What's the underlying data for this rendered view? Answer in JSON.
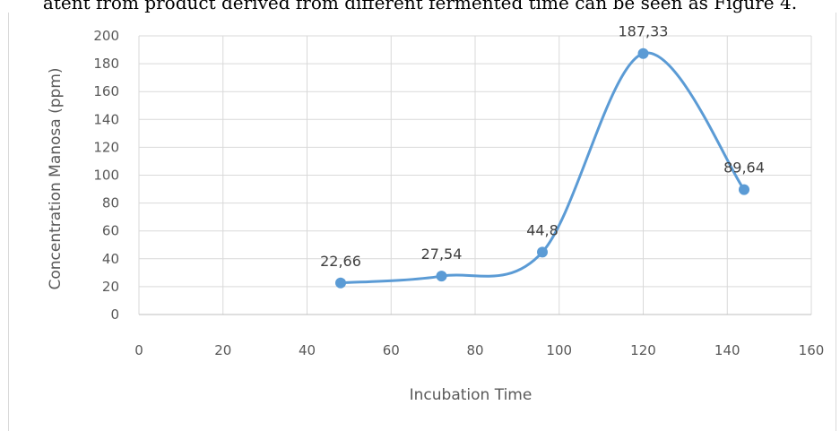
{
  "caption_fragment": "atent from product derived from different fermented time can be seen as Figure 4.",
  "chart_data": {
    "type": "line",
    "smooth": true,
    "title": "",
    "xlabel": "Incubation Time",
    "ylabel": "Concentration Manosa (ppm)",
    "xlim": [
      0,
      160
    ],
    "ylim": [
      0,
      200
    ],
    "xticks": [
      0,
      20,
      40,
      60,
      80,
      100,
      120,
      140,
      160
    ],
    "yticks": [
      0,
      20,
      40,
      60,
      80,
      100,
      120,
      140,
      160,
      180,
      200
    ],
    "grid": true,
    "x": [
      48,
      72,
      96,
      120,
      144
    ],
    "series": [
      {
        "values": [
          22.66,
          27.54,
          44.8,
          187.33,
          89.64
        ],
        "labels": [
          "22,66",
          "27,54",
          "44,8",
          "187,33",
          "89,64"
        ],
        "color": "#5b9bd5"
      }
    ]
  }
}
